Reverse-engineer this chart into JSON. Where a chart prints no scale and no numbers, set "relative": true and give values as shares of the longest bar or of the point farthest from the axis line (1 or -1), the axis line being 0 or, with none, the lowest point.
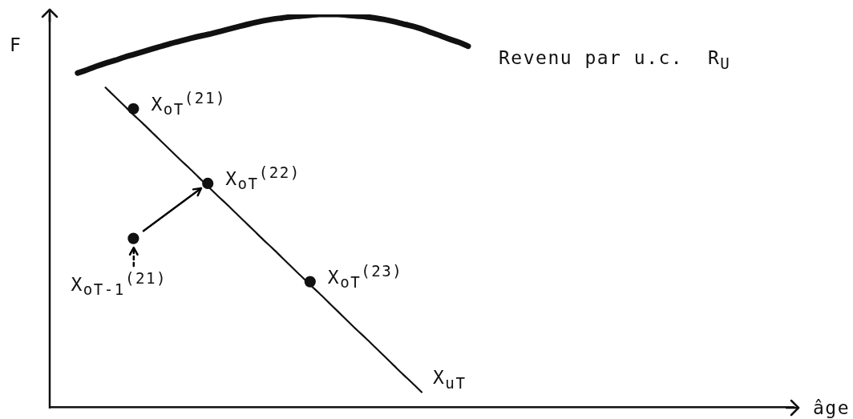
{
  "chart_data": {
    "type": "line",
    "relative": true,
    "xlabel": "âge",
    "ylabel": "F",
    "categories": [
      null,
      null,
      null,
      null,
      null,
      null,
      null,
      null,
      null,
      null,
      null,
      null,
      null,
      null,
      null,
      null,
      null,
      null,
      null,
      null,
      null,
      null,
      null,
      null,
      null,
      null,
      null,
      null,
      null,
      null,
      null,
      null,
      null,
      null,
      null,
      null,
      null,
      null,
      null,
      null,
      null,
      null,
      null,
      null,
      null,
      null,
      null,
      null,
      null,
      null,
      null,
      null,
      null,
      null,
      null,
      null,
      null,
      null,
      null,
      null,
      null,
      null,
      null,
      null,
      null,
      null,
      null,
      null,
      null,
      null,
      null,
      null,
      null,
      null,
      null,
      null,
      null,
      null,
      null,
      null,
      null
    ],
    "series": [
      {
        "name": "Revenu par u.c.  R$_{U}$",
        "color": "#111111",
        "values": [
          null,
          null,
          null,
          0.851,
          0.859,
          0.868,
          0.876,
          0.883,
          0.891,
          0.898,
          0.905,
          0.912,
          0.919,
          0.926,
          0.932,
          0.938,
          0.944,
          0.949,
          0.955,
          0.961,
          0.967,
          0.973,
          0.979,
          0.984,
          0.988,
          0.991,
          0.994,
          0.996,
          0.998,
          1,
          1,
          1,
          0.998,
          0.996,
          0.994,
          0.991,
          0.987,
          0.982,
          0.976,
          0.97,
          0.963,
          0.954,
          0.946,
          0.937,
          0.929,
          0.919,
          null,
          null,
          null,
          null,
          null,
          null,
          null,
          null,
          null,
          null,
          null,
          null,
          null,
          null,
          null,
          null,
          null,
          null,
          null,
          null,
          null,
          null,
          null,
          null,
          null,
          null,
          null,
          null,
          null,
          null,
          null,
          null,
          null,
          null,
          null
        ]
      },
      {
        "name": "X$_{uT}$",
        "color": "#111111",
        "values": [
          null,
          null,
          null,
          null,
          null,
          null,
          0.814,
          0.791,
          0.768,
          0.745,
          0.723,
          0.7,
          0.677,
          0.654,
          0.631,
          0.609,
          0.586,
          0.563,
          0.54,
          0.518,
          0.495,
          0.472,
          0.449,
          0.426,
          0.404,
          0.381,
          0.358,
          0.335,
          0.312,
          0.29,
          0.267,
          0.244,
          0.221,
          0.198,
          0.176,
          0.153,
          0.13,
          0.107,
          0.084,
          0.062,
          0.039,
          null,
          null,
          null,
          null,
          null,
          null,
          null,
          null,
          null,
          null,
          null,
          null,
          null,
          null,
          null,
          null,
          null,
          null,
          null,
          null,
          null,
          null,
          null,
          null,
          null,
          null,
          null,
          null,
          null,
          null,
          null,
          null,
          null,
          null,
          null,
          null,
          null,
          null,
          null,
          null
        ]
      },
      {
        "marker": "circle",
        "name": "X$_{oT}$$^{(21)}$",
        "color": "#111111",
        "values": [
          null,
          null,
          null,
          null,
          null,
          null,
          null,
          null,
          null,
          0.76,
          null,
          null,
          null,
          null,
          null,
          null,
          null,
          null,
          null,
          null,
          null,
          null,
          null,
          null,
          null,
          null,
          null,
          null,
          null,
          null,
          null,
          null,
          null,
          null,
          null,
          null,
          null,
          null,
          null,
          null,
          null,
          null,
          null,
          null,
          null,
          null,
          null,
          null,
          null,
          null,
          null,
          null,
          null,
          null,
          null,
          null,
          null,
          null,
          null,
          null,
          null,
          null,
          null,
          null,
          null,
          null,
          null,
          null,
          null,
          null,
          null,
          null,
          null,
          null,
          null,
          null,
          null,
          null,
          null,
          null,
          null
        ]
      },
      {
        "marker": "circle",
        "name": "X$_{oT}$$^{(22)}$",
        "color": "#111111",
        "values": [
          null,
          null,
          null,
          null,
          null,
          null,
          null,
          null,
          null,
          null,
          null,
          null,
          null,
          null,
          null,
          null,
          null,
          0.57,
          null,
          null,
          null,
          null,
          null,
          null,
          null,
          null,
          null,
          null,
          null,
          null,
          null,
          null,
          null,
          null,
          null,
          null,
          null,
          null,
          null,
          null,
          null,
          null,
          null,
          null,
          null,
          null,
          null,
          null,
          null,
          null,
          null,
          null,
          null,
          null,
          null,
          null,
          null,
          null,
          null,
          null,
          null,
          null,
          null,
          null,
          null,
          null,
          null,
          null,
          null,
          null,
          null,
          null,
          null,
          null,
          null,
          null,
          null,
          null,
          null,
          null,
          null
        ]
      },
      {
        "marker": "circle",
        "name": "X$_{oT}$$^{(23)}$",
        "color": "#111111",
        "values": [
          null,
          null,
          null,
          null,
          null,
          null,
          null,
          null,
          null,
          null,
          null,
          null,
          null,
          null,
          null,
          null,
          null,
          null,
          null,
          null,
          null,
          null,
          null,
          null,
          null,
          null,
          null,
          null,
          0.32,
          null,
          null,
          null,
          null,
          null,
          null,
          null,
          null,
          null,
          null,
          null,
          null,
          null,
          null,
          null,
          null,
          null,
          null,
          null,
          null,
          null,
          null,
          null,
          null,
          null,
          null,
          null,
          null,
          null,
          null,
          null,
          null,
          null,
          null,
          null,
          null,
          null,
          null,
          null,
          null,
          null,
          null,
          null,
          null,
          null,
          null,
          null,
          null,
          null,
          null,
          null,
          null
        ]
      },
      {
        "marker": "circle",
        "name": "X$_{oT-1}$$^{(21)}$",
        "color": "#111111",
        "values": [
          null,
          null,
          null,
          null,
          null,
          null,
          null,
          null,
          null,
          0.43,
          null,
          null,
          null,
          null,
          null,
          null,
          null,
          null,
          null,
          null,
          null,
          null,
          null,
          null,
          null,
          null,
          null,
          null,
          null,
          null,
          null,
          null,
          null,
          null,
          null,
          null,
          null,
          null,
          null,
          null,
          null,
          null,
          null,
          null,
          null,
          null,
          null,
          null,
          null,
          null,
          null,
          null,
          null,
          null,
          null,
          null,
          null,
          null,
          null,
          null,
          null,
          null,
          null,
          null,
          null,
          null,
          null,
          null,
          null,
          null,
          null,
          null,
          null,
          null,
          null,
          null,
          null,
          null,
          null,
          null,
          null
        ]
      }
    ]
  }
}
